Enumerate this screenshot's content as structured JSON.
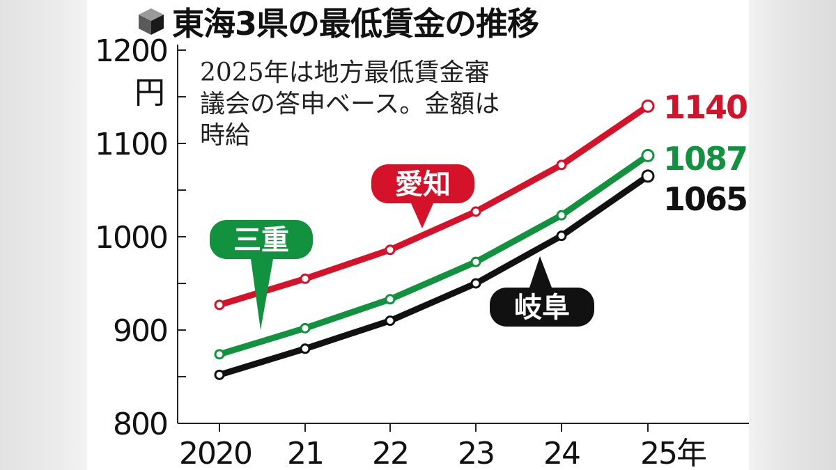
{
  "title": "東海3県の最低賃金の推移",
  "note": "2025年は地方最低賃金審\n議会の答申ベース。金額は\n時給",
  "colors": {
    "aichi": "#d4132a",
    "mie": "#12913e",
    "gifu": "#111111"
  },
  "chart_data": {
    "type": "line",
    "x": [
      "2020",
      "21",
      "22",
      "23",
      "24",
      "25年"
    ],
    "yaxis": {
      "unit": "円",
      "ticks": [
        "800",
        "900",
        "1000",
        "1100",
        "1200"
      ],
      "ylim": [
        800,
        1200
      ]
    },
    "series": [
      {
        "key": "aichi",
        "name": "愛知",
        "values": [
          927,
          955,
          986,
          1027,
          1077,
          1140
        ],
        "end_label": "1140"
      },
      {
        "key": "mie",
        "name": "三重",
        "values": [
          874,
          902,
          933,
          973,
          1023,
          1087
        ],
        "end_label": "1087"
      },
      {
        "key": "gifu",
        "name": "岐阜",
        "values": [
          852,
          880,
          910,
          950,
          1001,
          1065
        ],
        "end_label": "1065"
      }
    ]
  }
}
